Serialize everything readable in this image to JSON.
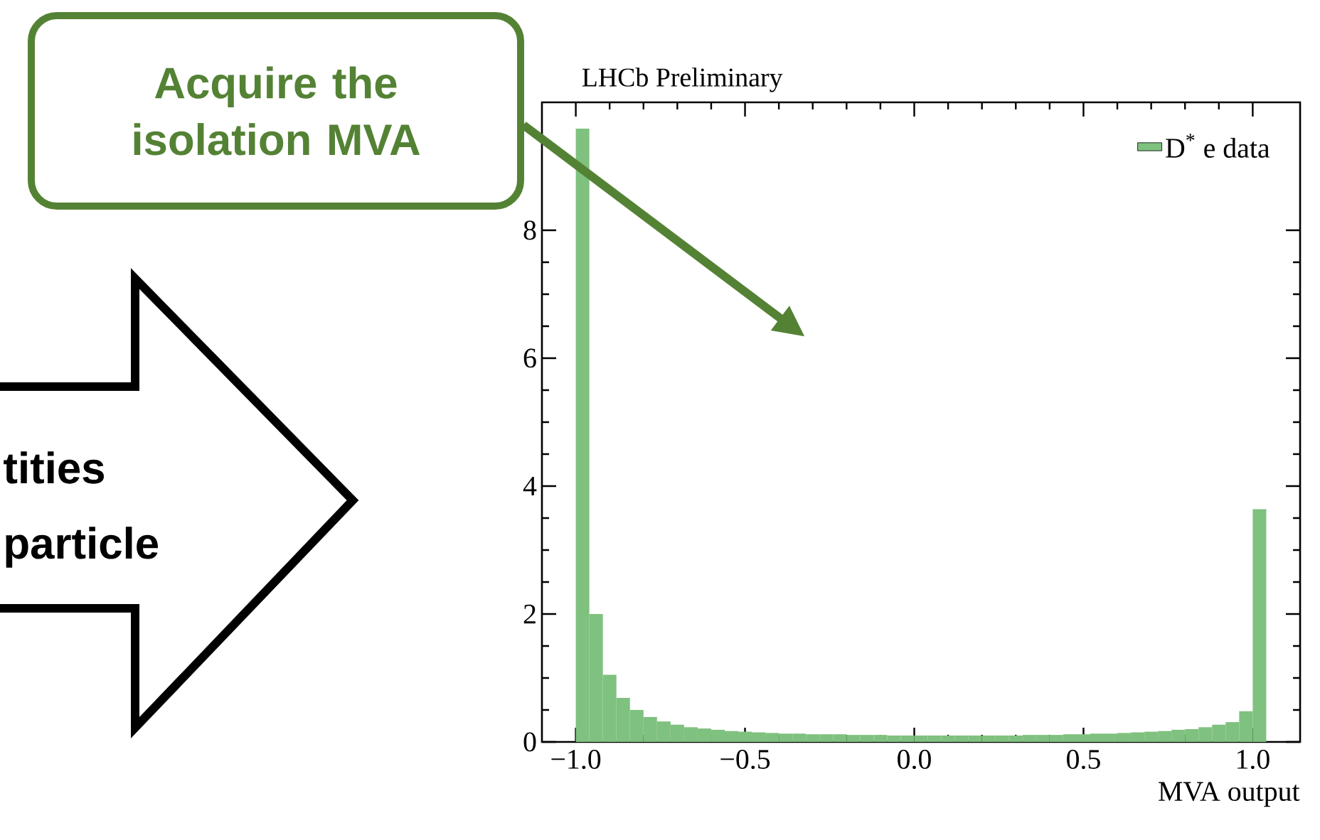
{
  "chart_data": {
    "type": "histogram",
    "title": "LHCb Preliminary",
    "xlabel": "MVA output",
    "bins": [
      -1.0,
      -0.96,
      -0.92,
      -0.88,
      -0.84,
      -0.8,
      -0.76,
      -0.72,
      -0.68,
      -0.64,
      -0.6,
      -0.56,
      -0.52,
      -0.48,
      -0.44,
      -0.4,
      -0.36,
      -0.32,
      -0.28,
      -0.24,
      -0.2,
      -0.16,
      -0.12,
      -0.08,
      -0.04,
      0.0,
      0.04,
      0.08,
      0.12,
      0.16,
      0.2,
      0.24,
      0.28,
      0.32,
      0.36,
      0.4,
      0.44,
      0.48,
      0.52,
      0.56,
      0.6,
      0.64,
      0.68,
      0.72,
      0.76,
      0.8,
      0.84,
      0.88,
      0.92,
      0.96,
      1.0,
      1.04
    ],
    "series": [
      {
        "name": "D$^{*}$ e data",
        "color": "#7fc17f",
        "values": [
          9.59,
          2.0,
          1.05,
          0.69,
          0.5,
          0.39,
          0.32,
          0.27,
          0.23,
          0.21,
          0.19,
          0.17,
          0.16,
          0.15,
          0.14,
          0.13,
          0.13,
          0.12,
          0.12,
          0.12,
          0.11,
          0.11,
          0.11,
          0.1,
          0.1,
          0.1,
          0.1,
          0.1,
          0.1,
          0.1,
          0.1,
          0.1,
          0.1,
          0.11,
          0.11,
          0.11,
          0.12,
          0.12,
          0.13,
          0.13,
          0.14,
          0.15,
          0.16,
          0.17,
          0.19,
          0.2,
          0.23,
          0.27,
          0.31,
          0.48,
          3.64
        ]
      }
    ],
    "xlim": [
      -1.1,
      1.14
    ],
    "ylim": [
      0,
      10
    ],
    "xticks": [
      {
        "value": -1.0,
        "label": "−1.0"
      },
      {
        "value": -0.5,
        "label": "−0.5"
      },
      {
        "value": 0.0,
        "label": "0.0"
      },
      {
        "value": 0.5,
        "label": "0.5"
      },
      {
        "value": 1.0,
        "label": "1.0"
      }
    ],
    "yticks": [
      0,
      2,
      4,
      6,
      8
    ],
    "legend": "top right",
    "annotations": [
      "Acquire the isolation MVA",
      "tities",
      "particle"
    ]
  }
}
